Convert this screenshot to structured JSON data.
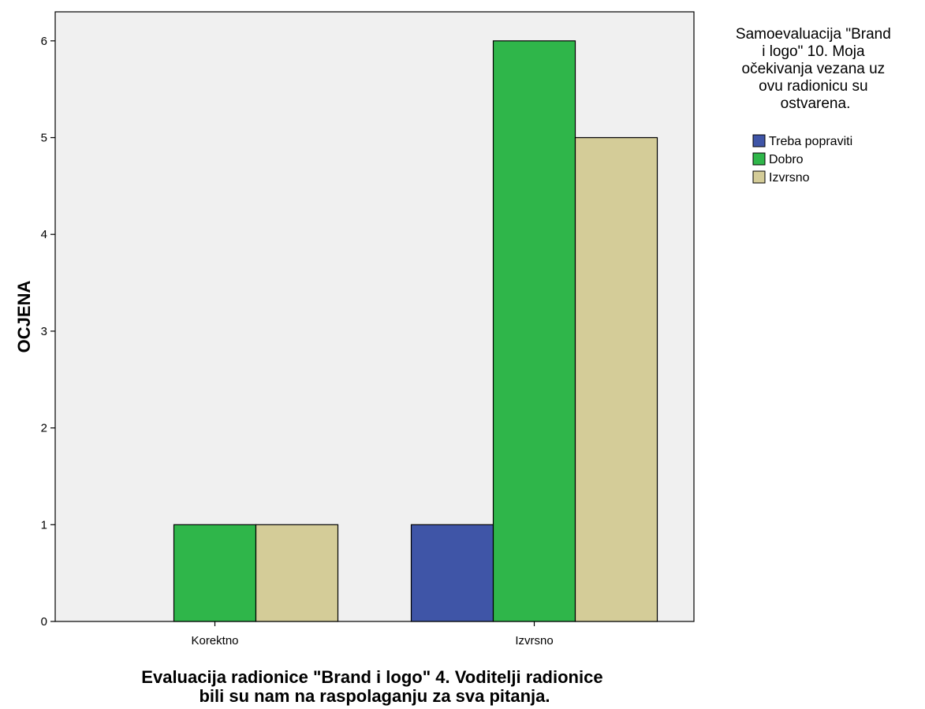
{
  "chart_data": {
    "type": "bar",
    "categories": [
      "Korektno",
      "Izvrsno"
    ],
    "series": [
      {
        "name": "Treba popraviti",
        "values": [
          0,
          1
        ],
        "color": "#3f55a7"
      },
      {
        "name": "Dobro",
        "values": [
          1,
          6
        ],
        "color": "#2fb64a"
      },
      {
        "name": "Izvrsno",
        "values": [
          1,
          5
        ],
        "color": "#d4cc98"
      }
    ],
    "xlabel_lines": [
      "Evaluacija radionice \"Brand i logo\" 4. Voditelji radionice",
      "bili su nam na raspolaganju za sva pitanja."
    ],
    "ylabel": "OCJENA",
    "ylim": [
      0,
      6.3
    ],
    "yticks": [
      0,
      1,
      2,
      3,
      4,
      5,
      6
    ],
    "legend_title_lines": [
      "Samoevaluacija \"Brand",
      "i logo\" 10. Moja",
      "očekivanja vezana uz",
      "ovu radionicu su",
      "ostvarena."
    ],
    "legend_position": "right",
    "grid": false,
    "plot_background": "#f0f0f0"
  }
}
